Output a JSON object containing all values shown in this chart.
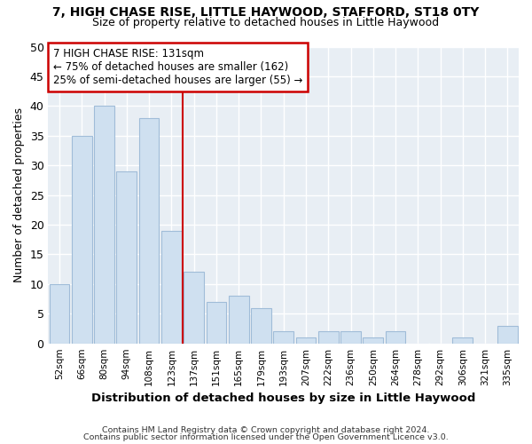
{
  "title_line1": "7, HIGH CHASE RISE, LITTLE HAYWOOD, STAFFORD, ST18 0TY",
  "title_line2": "Size of property relative to detached houses in Little Haywood",
  "xlabel": "Distribution of detached houses by size in Little Haywood",
  "ylabel": "Number of detached properties",
  "categories": [
    "52sqm",
    "66sqm",
    "80sqm",
    "94sqm",
    "108sqm",
    "123sqm",
    "137sqm",
    "151sqm",
    "165sqm",
    "179sqm",
    "193sqm",
    "207sqm",
    "222sqm",
    "236sqm",
    "250sqm",
    "264sqm",
    "278sqm",
    "292sqm",
    "306sqm",
    "321sqm",
    "335sqm"
  ],
  "values": [
    10,
    35,
    40,
    29,
    38,
    19,
    12,
    7,
    8,
    6,
    2,
    1,
    2,
    2,
    1,
    2,
    0,
    0,
    1,
    0,
    3
  ],
  "bar_color": "#cfe0f0",
  "bar_edge_color": "#a0bcd8",
  "vline_x": 6,
  "vline_color": "#cc0000",
  "annotation_text": "7 HIGH CHASE RISE: 131sqm\n← 75% of detached houses are smaller (162)\n25% of semi-detached houses are larger (55) →",
  "annotation_box_color": "#ffffff",
  "annotation_box_edge": "#cc0000",
  "ylim": [
    0,
    50
  ],
  "yticks": [
    0,
    5,
    10,
    15,
    20,
    25,
    30,
    35,
    40,
    45,
    50
  ],
  "footer_line1": "Contains HM Land Registry data © Crown copyright and database right 2024.",
  "footer_line2": "Contains public sector information licensed under the Open Government Licence v3.0.",
  "bg_color": "#ffffff",
  "plot_bg_color": "#e8eef4",
  "grid_color": "#ffffff"
}
